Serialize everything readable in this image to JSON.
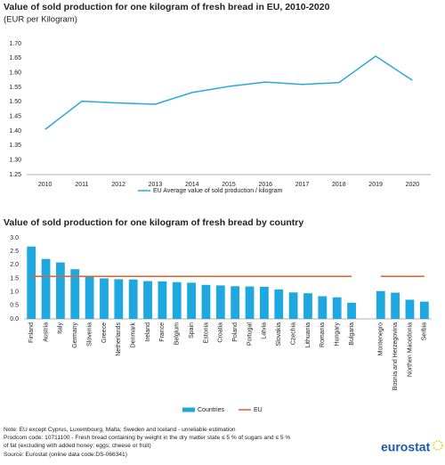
{
  "chart_data": [
    {
      "type": "line",
      "title": "Value of sold production for one kilogram of fresh bread in EU, 2010-2020",
      "subtitle": "(EUR per Kilogram)",
      "categories": [
        "2010",
        "2011",
        "2012",
        "2013",
        "2014",
        "2015",
        "2016",
        "2017",
        "2018",
        "2019",
        "2020"
      ],
      "series": [
        {
          "name": "EU Average value of sold production / kilogram",
          "color": "#29a8e0",
          "type": "line",
          "values": [
            1.405,
            1.502,
            1.496,
            1.492,
            1.532,
            1.553,
            1.568,
            1.56,
            1.566,
            1.657,
            1.574
          ]
        }
      ],
      "ylim": [
        1.25,
        1.7
      ],
      "yticks": [
        1.25,
        {
          "value": 1.3,
          "label": "1.30"
        },
        1.35,
        {
          "value": 1.4,
          "label": "1.40"
        },
        1.45,
        {
          "value": 1.5,
          "label": "1.50"
        },
        1.55,
        {
          "value": 1.6,
          "label": "1.60"
        },
        1.65,
        {
          "value": 1.7,
          "label": "1.70"
        }
      ],
      "grid": false
    },
    {
      "type": "bar",
      "title": "Value of sold production for one kilogram of fresh bread by country",
      "categories": [
        "Finland",
        "Austria",
        "Italy",
        "Germany",
        "Slovenia",
        "Greece",
        "Netherlands",
        "Denmark",
        "Ireland",
        "France",
        "Belgium",
        "Spain",
        "Estonia",
        "Croatia",
        "Poland",
        "Portugal",
        "Latvia",
        "Slovakia",
        "Czechia",
        "Lithuania",
        "Romania",
        "Hungary",
        "Bulgaria",
        null,
        "Montenegro",
        "Bosnia and Herzegovina",
        "Northen Macedonia",
        "Serbia"
      ],
      "series": [
        {
          "name": "Countries",
          "color": "#1fa8e0",
          "type": "bar",
          "values": [
            2.68,
            2.22,
            2.09,
            1.84,
            1.6,
            1.5,
            1.47,
            1.46,
            1.4,
            1.39,
            1.36,
            1.34,
            1.26,
            1.24,
            1.21,
            1.2,
            1.19,
            1.09,
            0.98,
            0.95,
            0.84,
            0.8,
            0.6,
            null,
            1.03,
            0.97,
            0.71,
            0.64
          ]
        },
        {
          "name": "EU",
          "color": "#e0622a",
          "type": "line",
          "values": [
            1.574,
            1.574,
            1.574,
            1.574,
            1.574,
            1.574,
            1.574,
            1.574,
            1.574,
            1.574,
            1.574,
            1.574,
            1.574,
            1.574,
            1.574,
            1.574,
            1.574,
            1.574,
            1.574,
            1.574,
            1.574,
            1.574,
            1.574,
            null,
            1.574,
            1.574,
            1.574,
            1.574
          ]
        }
      ],
      "ylim": [
        0,
        3
      ],
      "yticks": [
        {
          "value": 0,
          "label": "0.0"
        },
        0.5,
        {
          "value": 1,
          "label": "1.0"
        },
        1.5,
        {
          "value": 2,
          "label": "2.0"
        },
        2.5,
        {
          "value": 3,
          "label": "3.0"
        }
      ],
      "grid": false
    }
  ],
  "notes": [
    "Note: EU except Cyprus, Luxembourg, Malta; Sweden and Iceland - unreliable estimation",
    "Prodcom code: 10711100 - Fresh bread containing by weight in the dry matter state ≤ 5 % of sugars and ≤ 5 %",
    "of fat (excluding with added honey; eggs; cheese or fruit)",
    "Source: Eurostat (online data code:DS-066341)"
  ],
  "logo": "eurostat"
}
